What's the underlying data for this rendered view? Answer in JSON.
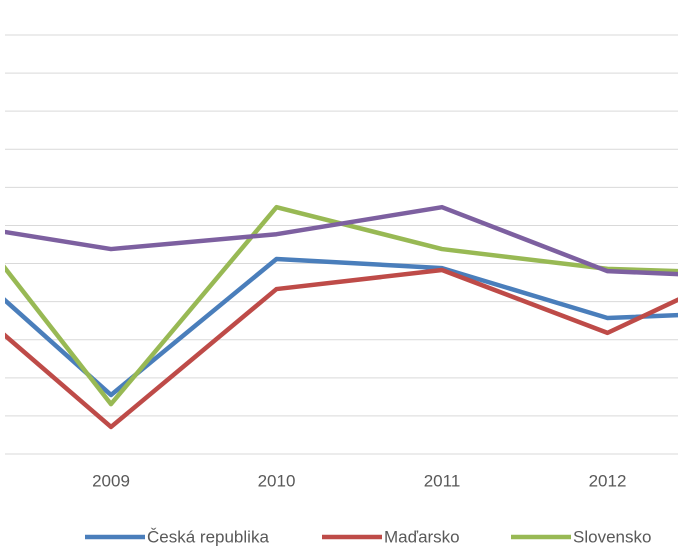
{
  "chart_data": {
    "type": "line",
    "categories": [
      null,
      "2009",
      "2010",
      "2011",
      "2012",
      null
    ],
    "series": [
      {
        "name": "Česká republika",
        "color": "#4a7ebb",
        "values": [
          5.43,
          1.55,
          5.12,
          4.88,
          3.57,
          3.75
        ]
      },
      {
        "name": "Maďarsko",
        "color": "#be4b48",
        "values": [
          4.46,
          0.71,
          4.33,
          4.83,
          3.18,
          5.22
        ]
      },
      {
        "name": "Slovensko",
        "color": "#98b954",
        "values": [
          6.88,
          1.31,
          6.48,
          5.38,
          4.86,
          4.72
        ]
      },
      {
        "color": "#7d60a0",
        "values": [
          6.08,
          5.38,
          5.77,
          6.48,
          4.8,
          4.62
        ]
      }
    ],
    "ylim": [
      0,
      11
    ],
    "yticks": [
      0,
      1,
      2,
      3,
      4,
      5,
      6,
      7,
      8,
      9,
      10,
      11
    ],
    "grid": true
  }
}
